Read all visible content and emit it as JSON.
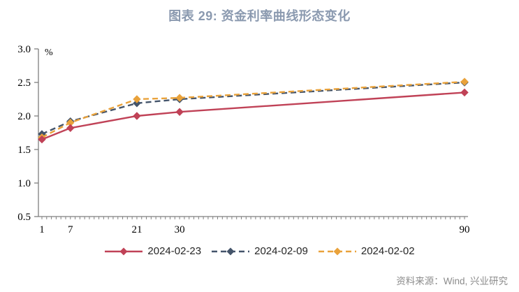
{
  "title": "图表 29: 资金利率曲线形态变化",
  "source": "资料来源：Wind, 兴业研究",
  "colors": {
    "title_text": "#8A99AF",
    "axis": "#7F7F7F",
    "tick_label": "#000000",
    "legend_text": "#262626",
    "source_text": "#8C8C8C",
    "series_red": "#C04257",
    "series_navy": "#44546A",
    "series_orange": "#E9A23B"
  },
  "chart_data": {
    "type": "line",
    "title": "图表 29: 资金利率曲线形态变化",
    "xlabel": "",
    "ylabel": "%",
    "y_unit_label": "%",
    "x": [
      1,
      7,
      21,
      30,
      90
    ],
    "x_tick_labels": [
      "1",
      "7",
      "21",
      "30",
      "90"
    ],
    "xlim": [
      1,
      90
    ],
    "x_minor_tick_step": 1,
    "ylim": [
      0.5,
      3.0
    ],
    "y_ticks": [
      0.5,
      1.0,
      1.5,
      2.0,
      2.5,
      3.0
    ],
    "grid": false,
    "legend_position": "bottom-center",
    "axis_color": "#7F7F7F",
    "series": [
      {
        "name": "2024-02-23",
        "color": "#C04257",
        "style": "solid",
        "marker": "diamond",
        "values": [
          1.65,
          1.82,
          2.0,
          2.06,
          2.35
        ]
      },
      {
        "name": "2024-02-09",
        "color": "#44546A",
        "style": "dashed",
        "marker": "diamond",
        "values": [
          1.73,
          1.92,
          2.19,
          2.25,
          2.5
        ]
      },
      {
        "name": "2024-02-02",
        "color": "#E9A23B",
        "style": "dashed",
        "marker": "diamond",
        "values": [
          1.68,
          1.9,
          2.25,
          2.27,
          2.51
        ]
      }
    ]
  }
}
